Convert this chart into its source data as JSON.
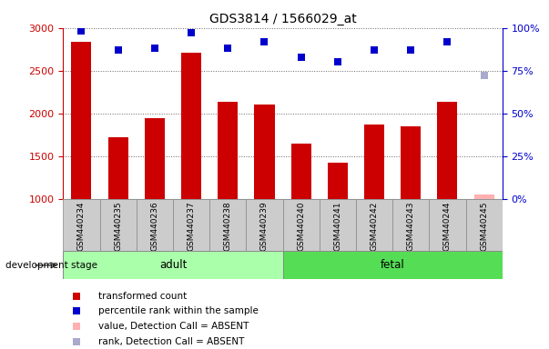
{
  "title": "GDS3814 / 1566029_at",
  "samples": [
    "GSM440234",
    "GSM440235",
    "GSM440236",
    "GSM440237",
    "GSM440238",
    "GSM440239",
    "GSM440240",
    "GSM440241",
    "GSM440242",
    "GSM440243",
    "GSM440244",
    "GSM440245"
  ],
  "bar_values": [
    2840,
    1720,
    1940,
    2710,
    2140,
    2100,
    1650,
    1420,
    1870,
    1850,
    2140,
    null
  ],
  "bar_absent_value": 1050,
  "bar_color": "#cc0000",
  "bar_absent_color": "#ffb0b0",
  "rank_values": [
    98,
    87,
    88,
    97,
    88,
    92,
    83,
    80,
    87,
    87,
    92,
    null
  ],
  "rank_absent_value": 72,
  "rank_color": "#0000cc",
  "rank_absent_color": "#aaaacc",
  "ylim_left": [
    1000,
    3000
  ],
  "ylim_right": [
    0,
    100
  ],
  "yticks_left": [
    1000,
    1500,
    2000,
    2500,
    3000
  ],
  "yticks_right": [
    0,
    25,
    50,
    75,
    100
  ],
  "adult_indices": [
    0,
    1,
    2,
    3,
    4,
    5
  ],
  "fetal_indices": [
    6,
    7,
    8,
    9,
    10,
    11
  ],
  "sample_bg_color": "#cccccc",
  "adult_color": "#aaffaa",
  "fetal_color": "#55dd55",
  "stage_label": "development stage",
  "legend_items": [
    {
      "label": "transformed count",
      "color": "#cc0000",
      "marker": "s"
    },
    {
      "label": "percentile rank within the sample",
      "color": "#0000cc",
      "marker": "s"
    },
    {
      "label": "value, Detection Call = ABSENT",
      "color": "#ffb0b0",
      "marker": "s"
    },
    {
      "label": "rank, Detection Call = ABSENT",
      "color": "#aaaacc",
      "marker": "s"
    }
  ],
  "bar_width": 0.55,
  "marker_size": 6
}
